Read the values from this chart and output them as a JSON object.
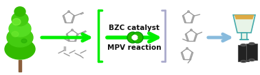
{
  "fig_width": 3.78,
  "fig_height": 1.1,
  "dpi": 100,
  "bg_color": "#ffffff",
  "green_arrow_color": "#00ee00",
  "blue_arrow_color": "#aabbdd",
  "text_bzc": "BZC catalyst",
  "text_mpv": "MPV reaction",
  "text_color": "#111111",
  "text_fontsize": 7.5,
  "text_bold": true,
  "left_bracket_color": "#55dd00",
  "right_bracket_color": "#aaaacc",
  "tree_color": "#22bb00",
  "flask_color": "#44aaaa",
  "barrel_color": "#111111"
}
